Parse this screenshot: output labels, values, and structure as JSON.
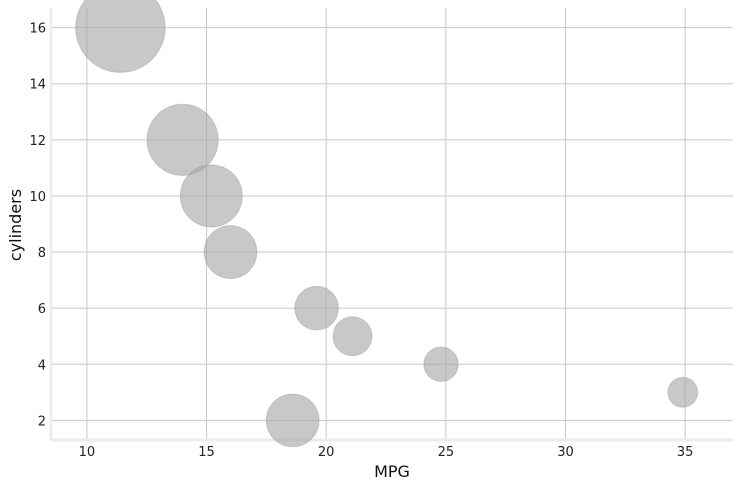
{
  "chart_data": {
    "type": "scatter",
    "title": "",
    "xlabel": "MPG",
    "ylabel": "cylinders",
    "xlim": [
      8.5,
      37
    ],
    "ylim": [
      1.3,
      16.7
    ],
    "x_ticks": [
      10,
      15,
      20,
      25,
      30,
      35
    ],
    "y_ticks": [
      2,
      4,
      6,
      8,
      10,
      12,
      14,
      16
    ],
    "grid": true,
    "legend": "none",
    "colors": {
      "bubble": "#a6a6a6",
      "grid": "#c8c8c8"
    },
    "points": [
      {
        "x": 11.4,
        "y": 16,
        "size": 16
      },
      {
        "x": 14.0,
        "y": 12,
        "size": 12
      },
      {
        "x": 15.2,
        "y": 10,
        "size": 10
      },
      {
        "x": 16.0,
        "y": 8,
        "size": 8
      },
      {
        "x": 19.6,
        "y": 6,
        "size": 6
      },
      {
        "x": 21.1,
        "y": 5,
        "size": 5
      },
      {
        "x": 24.8,
        "y": 4,
        "size": 4
      },
      {
        "x": 34.9,
        "y": 3,
        "size": 3
      },
      {
        "x": 18.6,
        "y": 2,
        "size": 8
      }
    ]
  }
}
